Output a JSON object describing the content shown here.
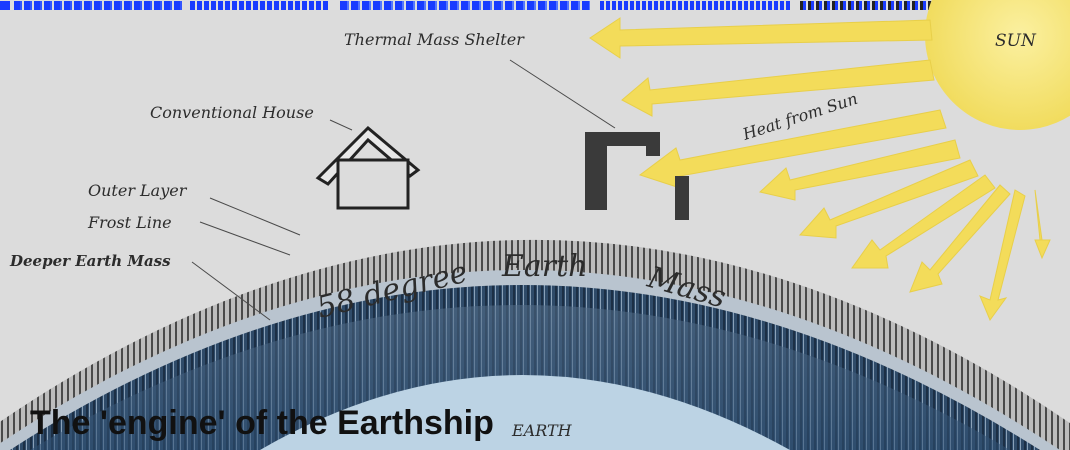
{
  "colors": {
    "link_underline": "#1a3cff",
    "sun": "#f4e47a",
    "sun_rays": "#f3dc5a",
    "earth_mass": "#3b5a7a",
    "earth_core": "#bcd3e4",
    "background": "#dcdcdc",
    "label_text": "#2c2c2c"
  },
  "diagram": {
    "labels": {
      "sun": "SUN",
      "heat_from_sun": "Heat from Sun",
      "thermal_mass_shelter": "Thermal Mass Shelter",
      "conventional_house": "Conventional House",
      "outer_layer": "Outer Layer",
      "frost_line": "Frost Line",
      "deeper_earth_mass": "Deeper Earth Mass",
      "earth_mass_word_1": "58 degree",
      "earth_mass_word_2": "Earth",
      "earth_mass_word_3": "Mass",
      "earth_core": "EARTH"
    }
  },
  "caption": {
    "text": "The 'engine' of the Earthship"
  }
}
